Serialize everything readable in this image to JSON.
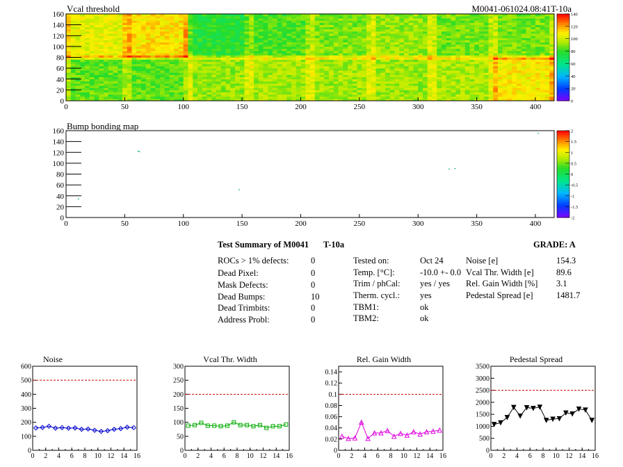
{
  "module": {
    "id_label": "M0041-061024.08:41T-10a"
  },
  "vcal_map": {
    "title": "Vcal threshold",
    "x_range": [
      0,
      416
    ],
    "y_range": [
      0,
      160
    ],
    "x_ticks": [
      0,
      50,
      100,
      150,
      200,
      250,
      300,
      350,
      400
    ],
    "y_ticks": [
      0,
      20,
      40,
      60,
      80,
      100,
      120,
      140,
      160
    ],
    "scale_range": [
      0,
      140
    ],
    "scale_ticks": [
      0,
      20,
      40,
      60,
      80,
      100,
      120,
      140
    ]
  },
  "bump_map": {
    "title": "Bump bonding map",
    "x_range": [
      0,
      416
    ],
    "y_range": [
      0,
      160
    ],
    "x_ticks": [
      0,
      50,
      100,
      150,
      200,
      250,
      300,
      350,
      400
    ],
    "y_ticks": [
      0,
      20,
      40,
      60,
      80,
      100,
      120,
      140,
      160
    ],
    "scale_range": [
      -2,
      2
    ],
    "scale_ticks": [
      "2",
      "1.5",
      "1",
      "0.5",
      "0",
      "-0.5",
      "-1",
      "-1.5",
      "-2"
    ]
  },
  "summary": {
    "heading": "Test Summary of M0041",
    "tag": "T-10a",
    "grade_label": "GRADE:  A",
    "defects": [
      {
        "label": "ROCs > 1% defects:",
        "value": "0"
      },
      {
        "label": "Dead Pixel:",
        "value": "0"
      },
      {
        "label": "Mask Defects:",
        "value": "0"
      },
      {
        "label": "Dead Bumps:",
        "value": "10"
      },
      {
        "label": "Dead Trimbits:",
        "value": "0"
      },
      {
        "label": "Address Probl:",
        "value": "0"
      }
    ],
    "conditions": [
      {
        "label": "Tested on:",
        "value": "Oct 24"
      },
      {
        "label": "Temp. [°C]:",
        "value": "-10.0 +- 0.0"
      },
      {
        "label": "Trim / phCal:",
        "value": "yes / yes"
      },
      {
        "label": "Therm. cycl.:",
        "value": "yes"
      },
      {
        "label": "TBM1:",
        "value": "ok"
      },
      {
        "label": "TBM2:",
        "value": "ok"
      }
    ],
    "results": [
      {
        "label": "Noise [e]",
        "value": "154.3"
      },
      {
        "label": "Vcal Thr. Width [e]",
        "value": "89.6"
      },
      {
        "label": "Rel. Gain Width [%]",
        "value": "3.1"
      },
      {
        "label": "Pedestal Spread [e]",
        "value": "1481.7"
      }
    ]
  },
  "chart_data": [
    {
      "type": "line",
      "title": "Noise",
      "x": [
        0.5,
        1.5,
        2.5,
        3.5,
        4.5,
        5.5,
        6.5,
        7.5,
        8.5,
        9.5,
        10.5,
        11.5,
        12.5,
        13.5,
        14.5,
        15.5
      ],
      "values": [
        160,
        163,
        172,
        158,
        162,
        158,
        160,
        150,
        152,
        143,
        135,
        140,
        150,
        155,
        165,
        162
      ],
      "xlim": [
        0,
        16
      ],
      "ylim": [
        0,
        600
      ],
      "x_ticks": [
        0,
        2,
        4,
        6,
        8,
        10,
        12,
        14,
        16
      ],
      "y_ticks": [
        0,
        100,
        200,
        300,
        400,
        500,
        600
      ],
      "y_tick_labels": [
        "0",
        "100",
        "200",
        "300",
        "400",
        "500",
        "600"
      ],
      "limit": 500,
      "color": "#0000cc",
      "marker": "diamond"
    },
    {
      "type": "line",
      "title": "Vcal Thr. Width",
      "x": [
        0.5,
        1.5,
        2.5,
        3.5,
        4.5,
        5.5,
        6.5,
        7.5,
        8.5,
        9.5,
        10.5,
        11.5,
        12.5,
        13.5,
        14.5,
        15.5
      ],
      "values": [
        88,
        90,
        98,
        88,
        88,
        86,
        88,
        100,
        90,
        90,
        86,
        90,
        80,
        86,
        86,
        92
      ],
      "xlim": [
        0,
        16
      ],
      "ylim": [
        0,
        300
      ],
      "x_ticks": [
        0,
        2,
        4,
        6,
        8,
        10,
        12,
        14,
        16
      ],
      "y_ticks": [
        0,
        50,
        100,
        150,
        200,
        250,
        300
      ],
      "y_tick_labels": [
        "0",
        "50",
        "100",
        "150",
        "200",
        "250",
        "300"
      ],
      "limit": 200,
      "color": "#00aa00",
      "marker": "square"
    },
    {
      "type": "line",
      "title": "Rel. Gain Width",
      "x": [
        0.5,
        1.5,
        2.5,
        3.5,
        4.5,
        5.5,
        6.5,
        7.5,
        8.5,
        9.5,
        10.5,
        11.5,
        12.5,
        13.5,
        14.5,
        15.5
      ],
      "values": [
        0.025,
        0.021,
        0.022,
        0.05,
        0.021,
        0.031,
        0.031,
        0.035,
        0.025,
        0.03,
        0.027,
        0.033,
        0.029,
        0.033,
        0.034,
        0.036
      ],
      "xlim": [
        0,
        16
      ],
      "ylim": [
        0,
        0.15
      ],
      "x_ticks": [
        0,
        2,
        4,
        6,
        8,
        10,
        12,
        14,
        16
      ],
      "y_ticks": [
        0,
        0.02,
        0.04,
        0.06,
        0.08,
        0.1,
        0.12,
        0.14
      ],
      "y_tick_labels": [
        "0",
        "0.02",
        "0.04",
        "0.06",
        "0.08",
        "0.1",
        "0.12",
        "0.14"
      ],
      "limit": 0.1,
      "color": "#dd00dd",
      "marker": "triangle"
    },
    {
      "type": "line",
      "title": "Pedestal Spread",
      "x": [
        0.5,
        1.5,
        2.5,
        3.5,
        4.5,
        5.5,
        6.5,
        7.5,
        8.5,
        9.5,
        10.5,
        11.5,
        12.5,
        13.5,
        14.5,
        15.5
      ],
      "values": [
        1080,
        1150,
        1370,
        1790,
        1430,
        1780,
        1750,
        1800,
        1250,
        1300,
        1320,
        1560,
        1520,
        1720,
        1680,
        1250
      ],
      "xlim": [
        0,
        16
      ],
      "ylim": [
        0,
        3500
      ],
      "x_ticks": [
        0,
        2,
        4,
        6,
        8,
        10,
        12,
        14,
        16
      ],
      "y_ticks": [
        0,
        500,
        1000,
        1500,
        2000,
        2500,
        3000,
        3500
      ],
      "y_tick_labels": [
        "0",
        "500",
        "1000",
        "1500",
        "2000",
        "2500",
        "3000",
        "3500"
      ],
      "limit": 2500,
      "color": "#000000",
      "marker": "triangle-down"
    }
  ]
}
